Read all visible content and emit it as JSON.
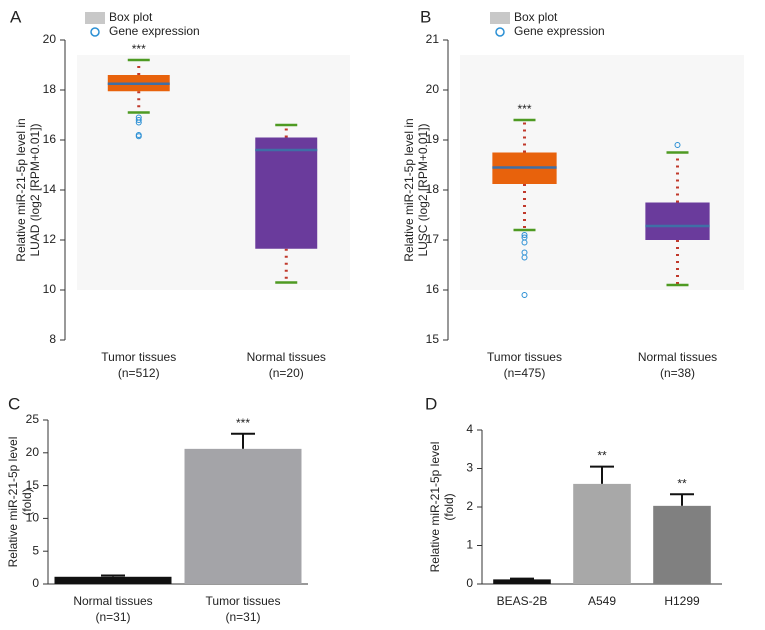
{
  "chart_data": [
    {
      "type": "box",
      "panel": "A",
      "legend": [
        "Box plot",
        "Gene expression"
      ],
      "ylabel": [
        "Relative miR-21-5p level in",
        "LUAD (log2 [RPM+0.01])"
      ],
      "categories": [
        "Tumor tissues",
        "Normal tissues"
      ],
      "category_notes": [
        "(n=512)",
        "(n=20)"
      ],
      "annotations": [
        "***",
        null
      ],
      "ylim": [
        8,
        20
      ],
      "yticks": [
        8,
        10,
        12,
        14,
        16,
        18,
        20
      ],
      "boxes": [
        {
          "low": 17.1,
          "q1": 17.95,
          "median": 18.25,
          "q3": 18.6,
          "high": 19.2,
          "outliers": [
            16.9,
            16.8,
            16.7,
            16.2,
            16.15
          ],
          "color": "#e8620c"
        },
        {
          "low": 10.3,
          "q1": 11.65,
          "median": 15.6,
          "q3": 16.1,
          "high": 16.6,
          "outliers": [],
          "color": "#6a3b9c"
        }
      ]
    },
    {
      "type": "box",
      "panel": "B",
      "legend": [
        "Box plot",
        "Gene expression"
      ],
      "ylabel": [
        "Relative miR-21-5p level in",
        "LUSC (log2 [RPM+0.01])"
      ],
      "categories": [
        "Tumor tissues",
        "Normal tissues"
      ],
      "category_notes": [
        "(n=475)",
        "(n=38)"
      ],
      "annotations": [
        "***",
        null
      ],
      "ylim": [
        15,
        21
      ],
      "yticks": [
        15,
        16,
        17,
        18,
        19,
        20,
        21
      ],
      "boxes": [
        {
          "low": 17.2,
          "q1": 18.12,
          "median": 18.45,
          "q3": 18.75,
          "high": 19.4,
          "outliers": [
            17.1,
            17.05,
            16.95,
            16.75,
            16.65,
            15.9
          ],
          "color": "#e8620c"
        },
        {
          "low": 16.1,
          "q1": 17.0,
          "median": 17.28,
          "q3": 17.75,
          "high": 18.75,
          "outliers": [
            18.9
          ],
          "color": "#6a3b9c"
        }
      ]
    },
    {
      "type": "bar",
      "panel": "C",
      "ylabel": [
        "Relative miR-21-5p level",
        "(fold)"
      ],
      "categories": [
        "Normal tissues",
        "Tumor tissues"
      ],
      "category_notes": [
        "(n=31)",
        "(n=31)"
      ],
      "annotations": [
        null,
        "***"
      ],
      "ylim": [
        0,
        25
      ],
      "yticks": [
        0,
        5,
        10,
        15,
        20,
        25
      ],
      "values": [
        1.1,
        20.6
      ],
      "errors": [
        0.2,
        2.3
      ],
      "colors": [
        "#111111",
        "#a4a4a8"
      ]
    },
    {
      "type": "bar",
      "panel": "D",
      "ylabel": [
        "Relative miR-21-5p level",
        "(fold)"
      ],
      "categories": [
        "BEAS-2B",
        "A549",
        "H1299"
      ],
      "annotations": [
        null,
        "**",
        "**"
      ],
      "ylim": [
        0,
        4
      ],
      "yticks": [
        0,
        1,
        2,
        3,
        4
      ],
      "values": [
        0.12,
        2.6,
        2.03
      ],
      "errors": [
        0.02,
        0.45,
        0.3
      ],
      "colors": [
        "#111111",
        "#a8a8a8",
        "#808080"
      ]
    }
  ]
}
